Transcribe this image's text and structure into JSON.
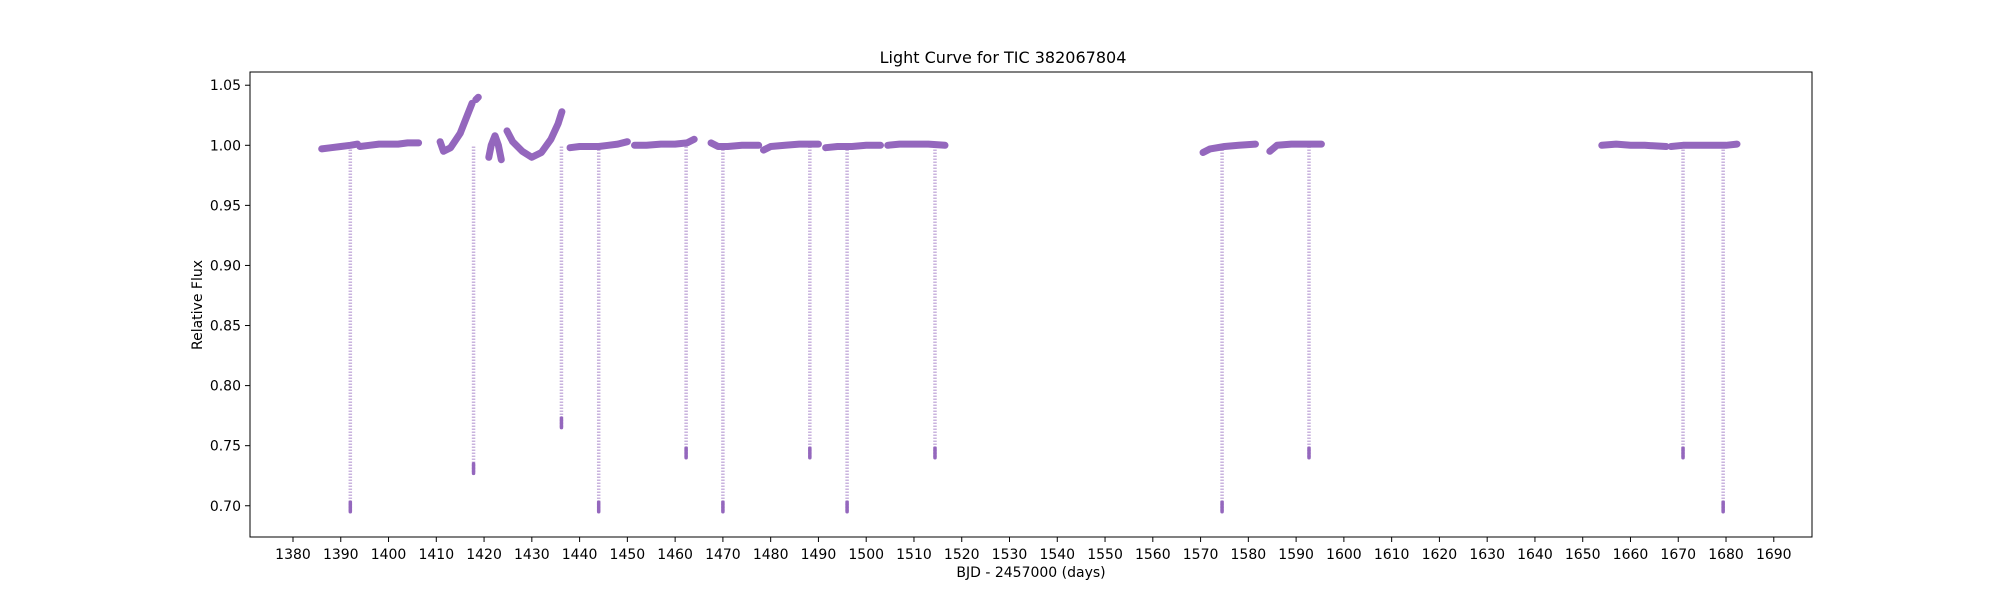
{
  "chart_data": {
    "type": "scatter",
    "title": "Light Curve for TIC 382067804",
    "xlabel": "BJD - 2457000 (days)",
    "ylabel": "Relative Flux",
    "xlim": [
      1371,
      1698
    ],
    "ylim": [
      0.674,
      1.061
    ],
    "xticks": [
      1380,
      1390,
      1400,
      1410,
      1420,
      1430,
      1440,
      1450,
      1460,
      1470,
      1480,
      1490,
      1500,
      1510,
      1520,
      1530,
      1540,
      1550,
      1560,
      1570,
      1580,
      1590,
      1600,
      1610,
      1620,
      1630,
      1640,
      1650,
      1660,
      1670,
      1680,
      1690
    ],
    "yticks": [
      0.7,
      0.75,
      0.8,
      0.85,
      0.9,
      0.95,
      1.0,
      1.05
    ],
    "ytick_labels": [
      "0.70",
      "0.75",
      "0.80",
      "0.85",
      "0.90",
      "0.95",
      "1.00",
      "1.05"
    ],
    "grid": false,
    "marker_color": "#9467bd",
    "series": [
      {
        "segments": [
          {
            "x": [
              1386.0,
              1388.0,
              1390.0,
              1392.0,
              1393.5
            ],
            "y": [
              0.997,
              0.998,
              0.999,
              1.0,
              1.001
            ]
          },
          {
            "x": [
              1394.0,
              1396.0,
              1398.0,
              1400.0,
              1402.0,
              1404.0,
              1406.3
            ],
            "y": [
              0.999,
              1.0,
              1.001,
              1.001,
              1.001,
              1.002,
              1.002
            ]
          },
          {
            "x": [
              1410.8,
              1411.5,
              1413.0,
              1415.0,
              1416.5,
              1417.5
            ],
            "y": [
              1.003,
              0.995,
              0.998,
              1.01,
              1.025,
              1.035
            ]
          },
          {
            "x": [
              1418.3,
              1418.8
            ],
            "y": [
              1.038,
              1.04
            ]
          },
          {
            "x": [
              1421.0,
              1421.5,
              1422.3,
              1423.0,
              1423.6
            ],
            "y": [
              0.99,
              1.0,
              1.008,
              1.0,
              0.988
            ]
          },
          {
            "x": [
              1424.8,
              1426.0,
              1428.0,
              1430.0,
              1432.0,
              1434.0,
              1435.5,
              1436.3
            ],
            "y": [
              1.012,
              1.003,
              0.995,
              0.99,
              0.994,
              1.005,
              1.018,
              1.028
            ]
          },
          {
            "x": [
              1438.0,
              1440.0,
              1442.0,
              1444.0,
              1446.0,
              1448.0,
              1450.0
            ],
            "y": [
              0.998,
              0.999,
              0.999,
              0.999,
              1.0,
              1.001,
              1.003
            ]
          },
          {
            "x": [
              1451.5,
              1454.0,
              1457.0,
              1460.0,
              1462.5,
              1464.0
            ],
            "y": [
              1.0,
              1.0,
              1.001,
              1.001,
              1.002,
              1.005
            ]
          },
          {
            "x": [
              1467.5,
              1469.0,
              1471.0,
              1474.0,
              1477.5
            ],
            "y": [
              1.002,
              0.999,
              0.999,
              1.0,
              1.0
            ]
          },
          {
            "x": [
              1478.5,
              1480.0,
              1483.0,
              1486.0,
              1490.0
            ],
            "y": [
              0.996,
              0.999,
              1.0,
              1.001,
              1.001
            ]
          },
          {
            "x": [
              1491.5,
              1494.0,
              1497.0,
              1500.0,
              1503.0
            ],
            "y": [
              0.998,
              0.999,
              0.999,
              1.0,
              1.0
            ]
          },
          {
            "x": [
              1504.5,
              1507.0,
              1510.0,
              1513.0,
              1516.5
            ],
            "y": [
              1.0,
              1.001,
              1.001,
              1.001,
              1.0
            ]
          },
          {
            "x": [
              1570.5,
              1572.0,
              1575.0,
              1578.0,
              1581.5
            ],
            "y": [
              0.994,
              0.997,
              0.999,
              1.0,
              1.001
            ]
          },
          {
            "x": [
              1584.5,
              1586.0,
              1589.0,
              1592.0,
              1595.3
            ],
            "y": [
              0.995,
              1.0,
              1.001,
              1.001,
              1.001
            ]
          },
          {
            "x": [
              1654.0,
              1657.0,
              1660.0,
              1663.0,
              1667.5
            ],
            "y": [
              1.0,
              1.001,
              1.0,
              1.0,
              0.999
            ]
          },
          {
            "x": [
              1668.5,
              1671.0,
              1674.0,
              1677.0,
              1680.0,
              1682.3
            ],
            "y": [
              0.999,
              1.0,
              1.0,
              1.0,
              1.0,
              1.001
            ]
          }
        ],
        "dips": [
          {
            "x": 1392.0,
            "depth": 0.695
          },
          {
            "x": 1417.8,
            "depth": 0.727
          },
          {
            "x": 1436.2,
            "depth": 0.765
          },
          {
            "x": 1444.0,
            "depth": 0.695
          },
          {
            "x": 1462.3,
            "depth": 0.74
          },
          {
            "x": 1470.0,
            "depth": 0.695
          },
          {
            "x": 1488.2,
            "depth": 0.74
          },
          {
            "x": 1496.0,
            "depth": 0.695
          },
          {
            "x": 1514.4,
            "depth": 0.74
          },
          {
            "x": 1574.5,
            "depth": 0.695
          },
          {
            "x": 1592.7,
            "depth": 0.74
          },
          {
            "x": 1671.0,
            "depth": 0.74
          },
          {
            "x": 1679.4,
            "depth": 0.695
          }
        ]
      }
    ]
  }
}
